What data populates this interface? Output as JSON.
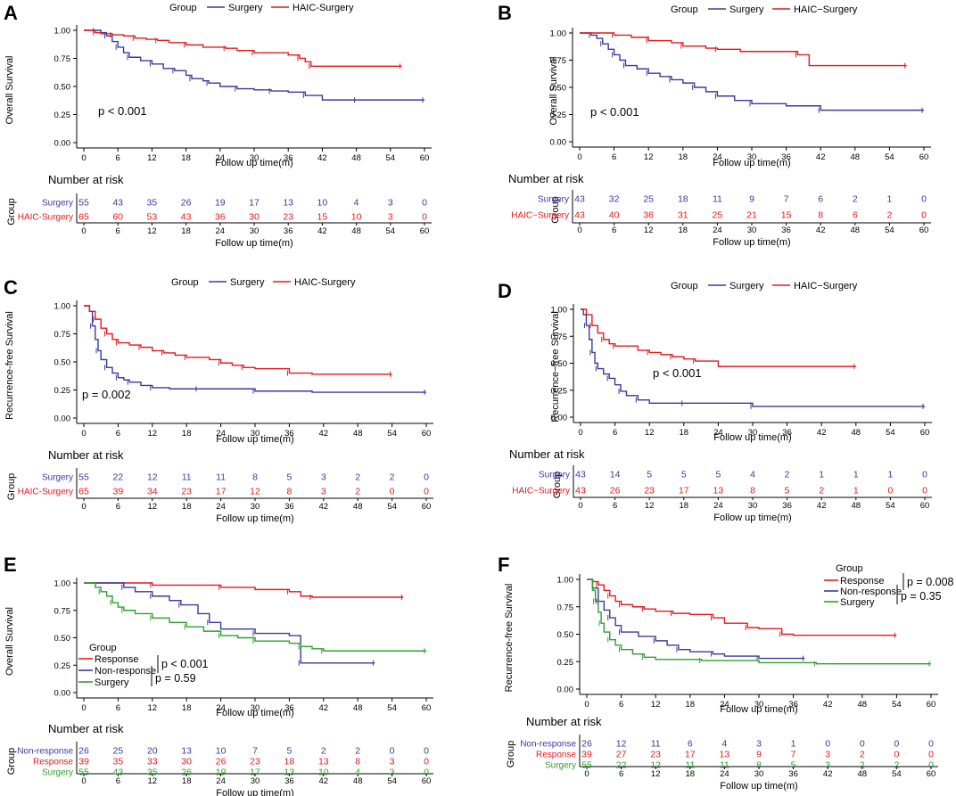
{
  "figure": {
    "x_axis_label": "Follow up time(m)",
    "x_ticks": [
      "0",
      "6",
      "12",
      "18",
      "24",
      "30",
      "36",
      "42",
      "48",
      "54",
      "60"
    ],
    "risk_table_title": "Number at risk",
    "risk_table_group_label": "Group"
  },
  "colors": {
    "red": "#e41a1c",
    "blue": "#3a3a9e",
    "green": "#2ca02c"
  },
  "chart_data": [
    {
      "panel": "A",
      "type": "line",
      "ylabel": "Overall Survival",
      "xlabel": "Follow up time(m)",
      "xlim": [
        0,
        60
      ],
      "ylim": [
        0,
        1
      ],
      "y_ticks": [
        "0.00",
        "0.25",
        "0.50",
        "0.75",
        "1.00"
      ],
      "legend": {
        "title": "Group",
        "position": "top",
        "entries": [
          "Surgery",
          "HAIC-Surgery"
        ]
      },
      "pvalue": "p < 0.001",
      "series": [
        {
          "name": "Surgery",
          "color": "blue",
          "x": [
            0,
            1,
            2,
            3,
            4,
            5,
            6,
            7,
            8,
            10,
            12,
            14,
            16,
            18,
            19,
            21,
            22,
            24,
            27,
            30,
            33,
            36,
            39,
            42,
            48,
            60
          ],
          "y": [
            1,
            1,
            1,
            0.98,
            0.95,
            0.9,
            0.85,
            0.8,
            0.76,
            0.73,
            0.7,
            0.66,
            0.64,
            0.6,
            0.57,
            0.55,
            0.53,
            0.5,
            0.48,
            0.47,
            0.46,
            0.45,
            0.42,
            0.38,
            0.38,
            0.38
          ]
        },
        {
          "name": "HAIC-Surgery",
          "color": "red",
          "x": [
            0,
            1,
            2,
            3,
            5,
            7,
            9,
            11,
            13,
            15,
            18,
            21,
            25,
            27,
            30,
            36,
            38,
            39,
            40,
            48,
            56
          ],
          "y": [
            1,
            1,
            0.98,
            0.97,
            0.96,
            0.95,
            0.93,
            0.92,
            0.91,
            0.89,
            0.87,
            0.85,
            0.84,
            0.82,
            0.8,
            0.78,
            0.75,
            0.72,
            0.68,
            0.68,
            0.68
          ]
        }
      ],
      "risk_table": [
        {
          "group": "Surgery",
          "color": "blue",
          "values": [
            "55",
            "43",
            "35",
            "26",
            "19",
            "17",
            "13",
            "10",
            "4",
            "3",
            "0"
          ]
        },
        {
          "group": "HAIC-Surgery",
          "color": "red",
          "values": [
            "65",
            "60",
            "53",
            "43",
            "36",
            "30",
            "23",
            "15",
            "10",
            "3",
            "0"
          ]
        }
      ]
    },
    {
      "panel": "B",
      "type": "line",
      "ylabel": "Overall Survival",
      "xlabel": "Follow up time(m)",
      "xlim": [
        0,
        60
      ],
      "ylim": [
        0,
        1
      ],
      "y_ticks": [
        "0.00",
        "0.25",
        "0.50",
        "0.75",
        "1.00"
      ],
      "legend": {
        "title": "Group",
        "position": "top",
        "entries": [
          "Surgery",
          "HAIC−Surgery"
        ]
      },
      "pvalue": "p < 0.001",
      "series": [
        {
          "name": "Surgery",
          "color": "blue",
          "x": [
            0,
            1,
            2,
            3,
            4,
            5,
            6,
            7,
            8,
            10,
            12,
            14,
            16,
            18,
            20,
            22,
            24,
            27,
            30,
            36,
            42,
            60
          ],
          "y": [
            1,
            1,
            0.98,
            0.95,
            0.9,
            0.85,
            0.8,
            0.75,
            0.7,
            0.67,
            0.63,
            0.6,
            0.57,
            0.54,
            0.5,
            0.46,
            0.42,
            0.38,
            0.35,
            0.33,
            0.29,
            0.29
          ]
        },
        {
          "name": "HAIC-Surgery",
          "color": "red",
          "x": [
            0,
            3,
            6,
            9,
            12,
            16,
            18,
            22,
            24,
            28,
            38,
            40,
            57
          ],
          "y": [
            1,
            1,
            0.98,
            0.96,
            0.93,
            0.91,
            0.88,
            0.86,
            0.85,
            0.83,
            0.8,
            0.7,
            0.7
          ]
        }
      ],
      "risk_table": [
        {
          "group": "Surgery",
          "color": "blue",
          "values": [
            "43",
            "32",
            "25",
            "18",
            "11",
            "9",
            "7",
            "6",
            "2",
            "1",
            "0"
          ]
        },
        {
          "group": "HAIC−Surgery",
          "color": "red",
          "values": [
            "43",
            "40",
            "36",
            "31",
            "25",
            "21",
            "15",
            "8",
            "6",
            "2",
            "0"
          ]
        }
      ]
    },
    {
      "panel": "C",
      "type": "line",
      "ylabel": "Recurrence-free Survival",
      "xlabel": "Follow up time(m)",
      "xlim": [
        0,
        60
      ],
      "ylim": [
        0,
        1
      ],
      "y_ticks": [
        "0.00",
        "0.25",
        "0.50",
        "0.75",
        "1.00"
      ],
      "legend": {
        "title": "Group",
        "position": "top",
        "entries": [
          "Surgery",
          "HAIC-Surgery"
        ]
      },
      "pvalue": "p = 0.002",
      "series": [
        {
          "name": "Surgery",
          "color": "blue",
          "x": [
            0,
            1,
            1.5,
            2,
            2.5,
            3,
            4,
            5,
            6,
            7,
            8,
            10,
            12,
            15,
            20,
            25,
            30,
            40,
            60
          ],
          "y": [
            1,
            0.95,
            0.82,
            0.7,
            0.6,
            0.52,
            0.45,
            0.4,
            0.36,
            0.34,
            0.32,
            0.29,
            0.27,
            0.26,
            0.26,
            0.26,
            0.24,
            0.23,
            0.23
          ]
        },
        {
          "name": "HAIC-Surgery",
          "color": "red",
          "x": [
            0,
            1,
            2,
            3,
            4,
            5,
            6,
            8,
            10,
            12,
            14,
            16,
            18,
            22,
            24,
            26,
            28,
            30,
            36,
            40,
            54
          ],
          "y": [
            1,
            0.95,
            0.88,
            0.8,
            0.75,
            0.7,
            0.67,
            0.65,
            0.63,
            0.6,
            0.58,
            0.56,
            0.54,
            0.52,
            0.49,
            0.47,
            0.45,
            0.44,
            0.4,
            0.39,
            0.39
          ]
        }
      ],
      "risk_table": [
        {
          "group": "Surgery",
          "color": "blue",
          "values": [
            "55",
            "22",
            "12",
            "11",
            "11",
            "8",
            "5",
            "3",
            "2",
            "2",
            "0"
          ]
        },
        {
          "group": "HAIC-Surgery",
          "color": "red",
          "values": [
            "65",
            "39",
            "34",
            "23",
            "17",
            "12",
            "8",
            "3",
            "2",
            "0",
            "0"
          ]
        }
      ]
    },
    {
      "panel": "D",
      "type": "line",
      "ylabel": "Recurrence−free Survival",
      "xlabel": "Follow up time(m)",
      "xlim": [
        0,
        60
      ],
      "ylim": [
        0,
        1
      ],
      "y_ticks": [
        "0.00",
        "0.25",
        "0.50",
        "0.75",
        "1.00"
      ],
      "legend": {
        "title": "Group",
        "position": "top",
        "entries": [
          "Surgery",
          "HAIC−Surgery"
        ]
      },
      "pvalue": "p < 0.001",
      "series": [
        {
          "name": "Surgery",
          "color": "blue",
          "x": [
            0,
            0.5,
            1,
            1.5,
            2,
            2.5,
            3,
            4,
            5,
            6,
            7,
            8,
            10,
            12,
            18,
            24,
            30,
            60
          ],
          "y": [
            1,
            0.95,
            0.85,
            0.72,
            0.6,
            0.5,
            0.45,
            0.4,
            0.36,
            0.3,
            0.24,
            0.2,
            0.16,
            0.13,
            0.13,
            0.13,
            0.1,
            0.1
          ]
        },
        {
          "name": "HAIC-Surgery",
          "color": "red",
          "x": [
            0,
            1,
            2,
            3,
            4,
            5,
            6,
            10,
            12,
            14,
            16,
            18,
            20,
            24,
            48
          ],
          "y": [
            1,
            0.95,
            0.85,
            0.78,
            0.72,
            0.68,
            0.66,
            0.62,
            0.6,
            0.58,
            0.56,
            0.54,
            0.52,
            0.47,
            0.47
          ]
        }
      ],
      "risk_table": [
        {
          "group": "Surgery",
          "color": "blue",
          "values": [
            "43",
            "14",
            "5",
            "5",
            "5",
            "4",
            "2",
            "1",
            "1",
            "1",
            "0"
          ]
        },
        {
          "group": "HAIC−Surgery",
          "color": "red",
          "values": [
            "43",
            "26",
            "23",
            "17",
            "13",
            "8",
            "5",
            "2",
            "1",
            "0",
            "0"
          ]
        }
      ]
    },
    {
      "panel": "E",
      "type": "line",
      "ylabel": "Overall Survival",
      "xlabel": "Follow up time(m)",
      "xlim": [
        0,
        60
      ],
      "ylim": [
        0,
        1
      ],
      "y_ticks": [
        "0.00",
        "0.25",
        "0.50",
        "0.75",
        "1.00"
      ],
      "legend": {
        "title": "Group",
        "position": "bottom-left",
        "entries": [
          "Response",
          "Non-response",
          "Surgery"
        ]
      },
      "pvalues": [
        "p < 0.001",
        "p = 0.59"
      ],
      "series": [
        {
          "name": "Response",
          "color": "red",
          "x": [
            0,
            6,
            12,
            18,
            24,
            30,
            36,
            38,
            40,
            56
          ],
          "y": [
            1,
            1,
            0.98,
            0.98,
            0.96,
            0.94,
            0.92,
            0.88,
            0.87,
            0.87
          ]
        },
        {
          "name": "Non-response",
          "color": "blue",
          "x": [
            0,
            5,
            7,
            9,
            12,
            15,
            17,
            20,
            22,
            24,
            30,
            36,
            38,
            51
          ],
          "y": [
            1,
            1,
            0.96,
            0.92,
            0.88,
            0.84,
            0.8,
            0.72,
            0.64,
            0.58,
            0.54,
            0.52,
            0.27,
            0.27
          ]
        },
        {
          "name": "Surgery",
          "color": "green",
          "x": [
            0,
            2,
            3,
            4,
            5,
            6,
            7,
            9,
            12,
            15,
            18,
            21,
            24,
            27,
            30,
            36,
            38,
            40,
            42,
            60
          ],
          "y": [
            1,
            0.96,
            0.92,
            0.88,
            0.82,
            0.78,
            0.75,
            0.72,
            0.68,
            0.64,
            0.6,
            0.56,
            0.52,
            0.5,
            0.47,
            0.45,
            0.42,
            0.4,
            0.38,
            0.38
          ]
        }
      ],
      "risk_table": [
        {
          "group": "Non-response",
          "color": "blue",
          "values": [
            "26",
            "25",
            "20",
            "13",
            "10",
            "7",
            "5",
            "2",
            "2",
            "0",
            "0"
          ]
        },
        {
          "group": "Response",
          "color": "red",
          "values": [
            "39",
            "35",
            "33",
            "30",
            "26",
            "23",
            "18",
            "13",
            "8",
            "3",
            "0"
          ]
        },
        {
          "group": "Surgery",
          "color": "green",
          "values": [
            "55",
            "43",
            "35",
            "26",
            "19",
            "17",
            "13",
            "10",
            "4",
            "3",
            "0"
          ]
        }
      ]
    },
    {
      "panel": "F",
      "type": "line",
      "ylabel": "Recurrence-free Survival",
      "xlabel": "Follow up time(m)",
      "xlim": [
        0,
        60
      ],
      "ylim": [
        0,
        1
      ],
      "y_ticks": [
        "0.00",
        "0.25",
        "0.50",
        "0.75",
        "1.00"
      ],
      "legend": {
        "title": "Group",
        "position": "top-right",
        "entries": [
          "Response",
          "Non-response",
          "Surgery"
        ]
      },
      "pvalues": [
        "p = 0.008",
        "p = 0.35"
      ],
      "series": [
        {
          "name": "Response",
          "color": "red",
          "x": [
            0,
            1,
            2,
            3,
            4,
            5,
            6,
            8,
            10,
            12,
            15,
            18,
            22,
            24,
            28,
            30,
            34,
            36,
            54
          ],
          "y": [
            1,
            0.98,
            0.95,
            0.9,
            0.85,
            0.8,
            0.77,
            0.75,
            0.73,
            0.71,
            0.69,
            0.68,
            0.65,
            0.6,
            0.56,
            0.55,
            0.5,
            0.49,
            0.49
          ]
        },
        {
          "name": "Non-response",
          "color": "blue",
          "x": [
            0,
            1,
            2,
            3,
            4,
            5,
            6,
            9,
            12,
            14,
            16,
            18,
            22,
            24,
            30,
            38
          ],
          "y": [
            1,
            0.92,
            0.8,
            0.72,
            0.65,
            0.58,
            0.52,
            0.48,
            0.44,
            0.4,
            0.36,
            0.34,
            0.32,
            0.3,
            0.28,
            0.28
          ]
        },
        {
          "name": "Surgery",
          "color": "green",
          "x": [
            0,
            1,
            1.5,
            2,
            2.5,
            3,
            4,
            5,
            6,
            8,
            10,
            12,
            20,
            30,
            40,
            60
          ],
          "y": [
            1,
            0.9,
            0.8,
            0.7,
            0.6,
            0.52,
            0.45,
            0.4,
            0.36,
            0.32,
            0.29,
            0.27,
            0.26,
            0.24,
            0.23,
            0.23
          ]
        }
      ],
      "risk_table": [
        {
          "group": "Non-response",
          "color": "blue",
          "values": [
            "26",
            "12",
            "11",
            "6",
            "4",
            "3",
            "1",
            "0",
            "0",
            "0",
            "0"
          ]
        },
        {
          "group": "Response",
          "color": "red",
          "values": [
            "39",
            "27",
            "23",
            "17",
            "13",
            "9",
            "7",
            "3",
            "2",
            "0",
            "0"
          ]
        },
        {
          "group": "Surgery",
          "color": "green",
          "values": [
            "55",
            "22",
            "12",
            "11",
            "11",
            "8",
            "5",
            "3",
            "2",
            "2",
            "0"
          ]
        }
      ]
    }
  ]
}
